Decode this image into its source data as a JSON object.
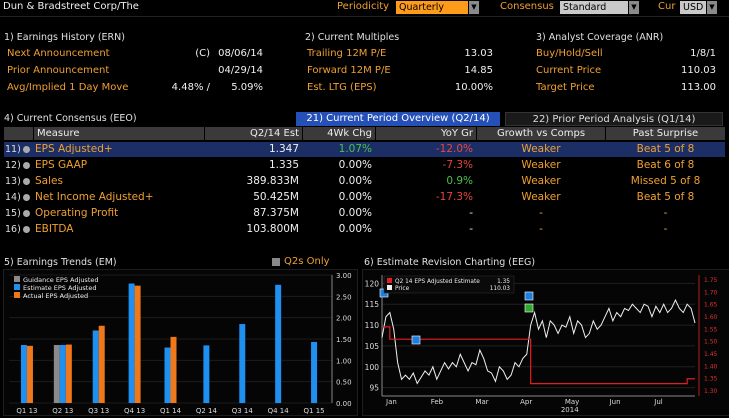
{
  "topbar": {
    "company": "Dun & Bradstreet Corp/The",
    "periodicity_label": "Periodicity",
    "periodicity_value": "Quarterly",
    "consensus_label": "Consensus",
    "consensus_value": "Standard",
    "currency_label": "Cur",
    "currency_value": "USD"
  },
  "earnings_history": {
    "title": "1) Earnings History (ERN)",
    "rows": [
      {
        "label": "Next Announcement",
        "flag": "(C)",
        "value": "08/06/14"
      },
      {
        "label": "Prior Announcement",
        "flag": "",
        "value": "04/29/14"
      },
      {
        "label": "Avg/Implied 1 Day Move",
        "flag": "4.48% /",
        "value": "5.09%"
      }
    ]
  },
  "multiples": {
    "title": "2) Current Multiples",
    "rows": [
      {
        "label": "Trailing 12M P/E",
        "value": "13.03"
      },
      {
        "label": "Forward 12M P/E",
        "value": "14.85"
      },
      {
        "label": "Est. LTG (EPS)",
        "value": "10.00%"
      }
    ]
  },
  "analyst": {
    "title": "3) Analyst Coverage (ANR)",
    "rows": [
      {
        "label": "Buy/Hold/Sell",
        "value": "1/8/1"
      },
      {
        "label": "Current Price",
        "value": "110.03"
      },
      {
        "label": "Target Price",
        "value": "113.00"
      }
    ]
  },
  "consensus": {
    "title": "4) Current Consensus (EEO)",
    "tab_current": "21) Current Period Overview (Q2/14)",
    "tab_prior": "22) Prior Period Analysis (Q1/14)",
    "headers": [
      "Measure",
      "Q2/14 Est",
      "4Wk Chg",
      "YoY Gr",
      "Growth vs Comps",
      "Past Surprise"
    ],
    "rows": [
      {
        "num": "11)",
        "measure": "EPS Adjusted+",
        "est": "1.347",
        "chg": "1.07%",
        "chg_color": "#49c24a",
        "yoy": "-12.0%",
        "yoy_color": "#e8463c",
        "growth": "Weaker",
        "surprise": "Beat 5 of 8"
      },
      {
        "num": "12)",
        "measure": "EPS GAAP",
        "est": "1.335",
        "chg": "0.00%",
        "chg_color": "#f0f0f0",
        "yoy": "-7.3%",
        "yoy_color": "#e8463c",
        "growth": "Weaker",
        "surprise": "Beat 6 of 8"
      },
      {
        "num": "13)",
        "measure": "Sales",
        "est": "389.833M",
        "chg": "0.00%",
        "chg_color": "#f0f0f0",
        "yoy": "0.9%",
        "yoy_color": "#49c24a",
        "growth": "Weaker",
        "surprise": "Missed 5 of 8"
      },
      {
        "num": "14)",
        "measure": "Net Income Adjusted+",
        "est": "50.425M",
        "chg": "0.00%",
        "chg_color": "#f0f0f0",
        "yoy": "-17.3%",
        "yoy_color": "#e8463c",
        "growth": "Weaker",
        "surprise": "Beat 5 of 8"
      },
      {
        "num": "15)",
        "measure": "Operating Profit",
        "est": "87.375M",
        "chg": "0.00%",
        "chg_color": "#f0f0f0",
        "yoy": "-",
        "yoy_color": "#f0f0f0",
        "growth": "-",
        "surprise": "-"
      },
      {
        "num": "16)",
        "measure": "EBITDA",
        "est": "103.800M",
        "chg": "0.00%",
        "chg_color": "#f0f0f0",
        "yoy": "-",
        "yoy_color": "#f0f0f0",
        "growth": "-",
        "surprise": "-"
      }
    ]
  },
  "trends_panel": {
    "title": "5) Earnings Trends (EM)",
    "q2s_only_label": "Q2s Only"
  },
  "revision_panel": {
    "title": "6) Estimate Revision Charting (EEG)"
  },
  "chart_data": [
    {
      "type": "bar",
      "categories": [
        "Q1 13",
        "Q2 13",
        "Q3 13",
        "Q4 13",
        "Q1 14",
        "Q2 14",
        "Q3 14",
        "Q4 14",
        "Q1 15"
      ],
      "series": [
        {
          "name": "Guidance EPS Adjusted",
          "color": "#8a8a8a",
          "values": [
            null,
            1.36,
            null,
            null,
            null,
            null,
            null,
            null,
            null
          ]
        },
        {
          "name": "Estimate EPS Adjusted",
          "color": "#1f8ff0",
          "values": [
            1.36,
            1.36,
            1.7,
            2.8,
            1.3,
            1.35,
            1.85,
            2.77,
            1.43
          ]
        },
        {
          "name": "Actual EPS Adjusted",
          "color": "#f07818",
          "values": [
            1.34,
            1.37,
            1.81,
            2.75,
            1.55,
            null,
            null,
            null,
            null
          ]
        }
      ],
      "ylim": [
        0,
        3.0
      ],
      "yticks": [
        "0.00",
        "0.50",
        "1.00",
        "1.50",
        "2.00",
        "2.50",
        "3.00"
      ]
    },
    {
      "type": "line",
      "x_labels": [
        "Jan",
        "Feb",
        "Mar",
        "Apr",
        "May",
        "Jun",
        "Jul"
      ],
      "year_label": "2014",
      "legend": [
        {
          "name": "Q2 14 EPS Adjusted Estimate",
          "value": "1.35",
          "color": "#e02020"
        },
        {
          "name": "Price",
          "value": "110.03",
          "color": "#f0f0f0"
        }
      ],
      "left_axis": {
        "ticks": [
          "95",
          "100",
          "105",
          "110",
          "115",
          "120"
        ],
        "range": [
          93,
          122
        ]
      },
      "right_axis": {
        "ticks": [
          "1.30",
          "1.35",
          "1.40",
          "1.45",
          "1.50",
          "1.55",
          "1.60",
          "1.65",
          "1.70",
          "1.75"
        ],
        "range": [
          1.28,
          1.77
        ]
      },
      "price": [
        107,
        112,
        113,
        109,
        101,
        97,
        98,
        97,
        98.5,
        96,
        97.5,
        99,
        98,
        100,
        97,
        99,
        101,
        99.5,
        101,
        100,
        103,
        101,
        99,
        101,
        100.5,
        104,
        102,
        99,
        98.5,
        96.5,
        100,
        99,
        97,
        98,
        101,
        100,
        102,
        103,
        110,
        113,
        109,
        111,
        107,
        111,
        110,
        108,
        110,
        109.5,
        112,
        108,
        111,
        110,
        107,
        108,
        111,
        109,
        110,
        112,
        114,
        111,
        113,
        112,
        114,
        113.5,
        115,
        114,
        113,
        115,
        114.5,
        112,
        114.5,
        113,
        115,
        113,
        114,
        116,
        114,
        113,
        115,
        114,
        110.5
      ],
      "estimate": [
        1.56,
        1.56,
        1.51,
        1.51,
        1.51,
        1.51,
        1.51,
        1.51,
        1.51,
        1.51,
        1.51,
        1.51,
        1.51,
        1.51,
        1.51,
        1.51,
        1.51,
        1.51,
        1.51,
        1.51,
        1.51,
        1.51,
        1.51,
        1.51,
        1.51,
        1.51,
        1.51,
        1.51,
        1.51,
        1.51,
        1.51,
        1.51,
        1.51,
        1.51,
        1.51,
        1.51,
        1.51,
        1.51,
        1.33,
        1.33,
        1.33,
        1.33,
        1.33,
        1.33,
        1.33,
        1.33,
        1.33,
        1.33,
        1.33,
        1.33,
        1.33,
        1.33,
        1.33,
        1.33,
        1.33,
        1.33,
        1.33,
        1.33,
        1.33,
        1.33,
        1.33,
        1.33,
        1.33,
        1.33,
        1.33,
        1.33,
        1.33,
        1.33,
        1.33,
        1.33,
        1.33,
        1.33,
        1.33,
        1.33,
        1.33,
        1.33,
        1.33,
        1.33,
        1.35,
        1.35,
        1.35
      ]
    }
  ]
}
